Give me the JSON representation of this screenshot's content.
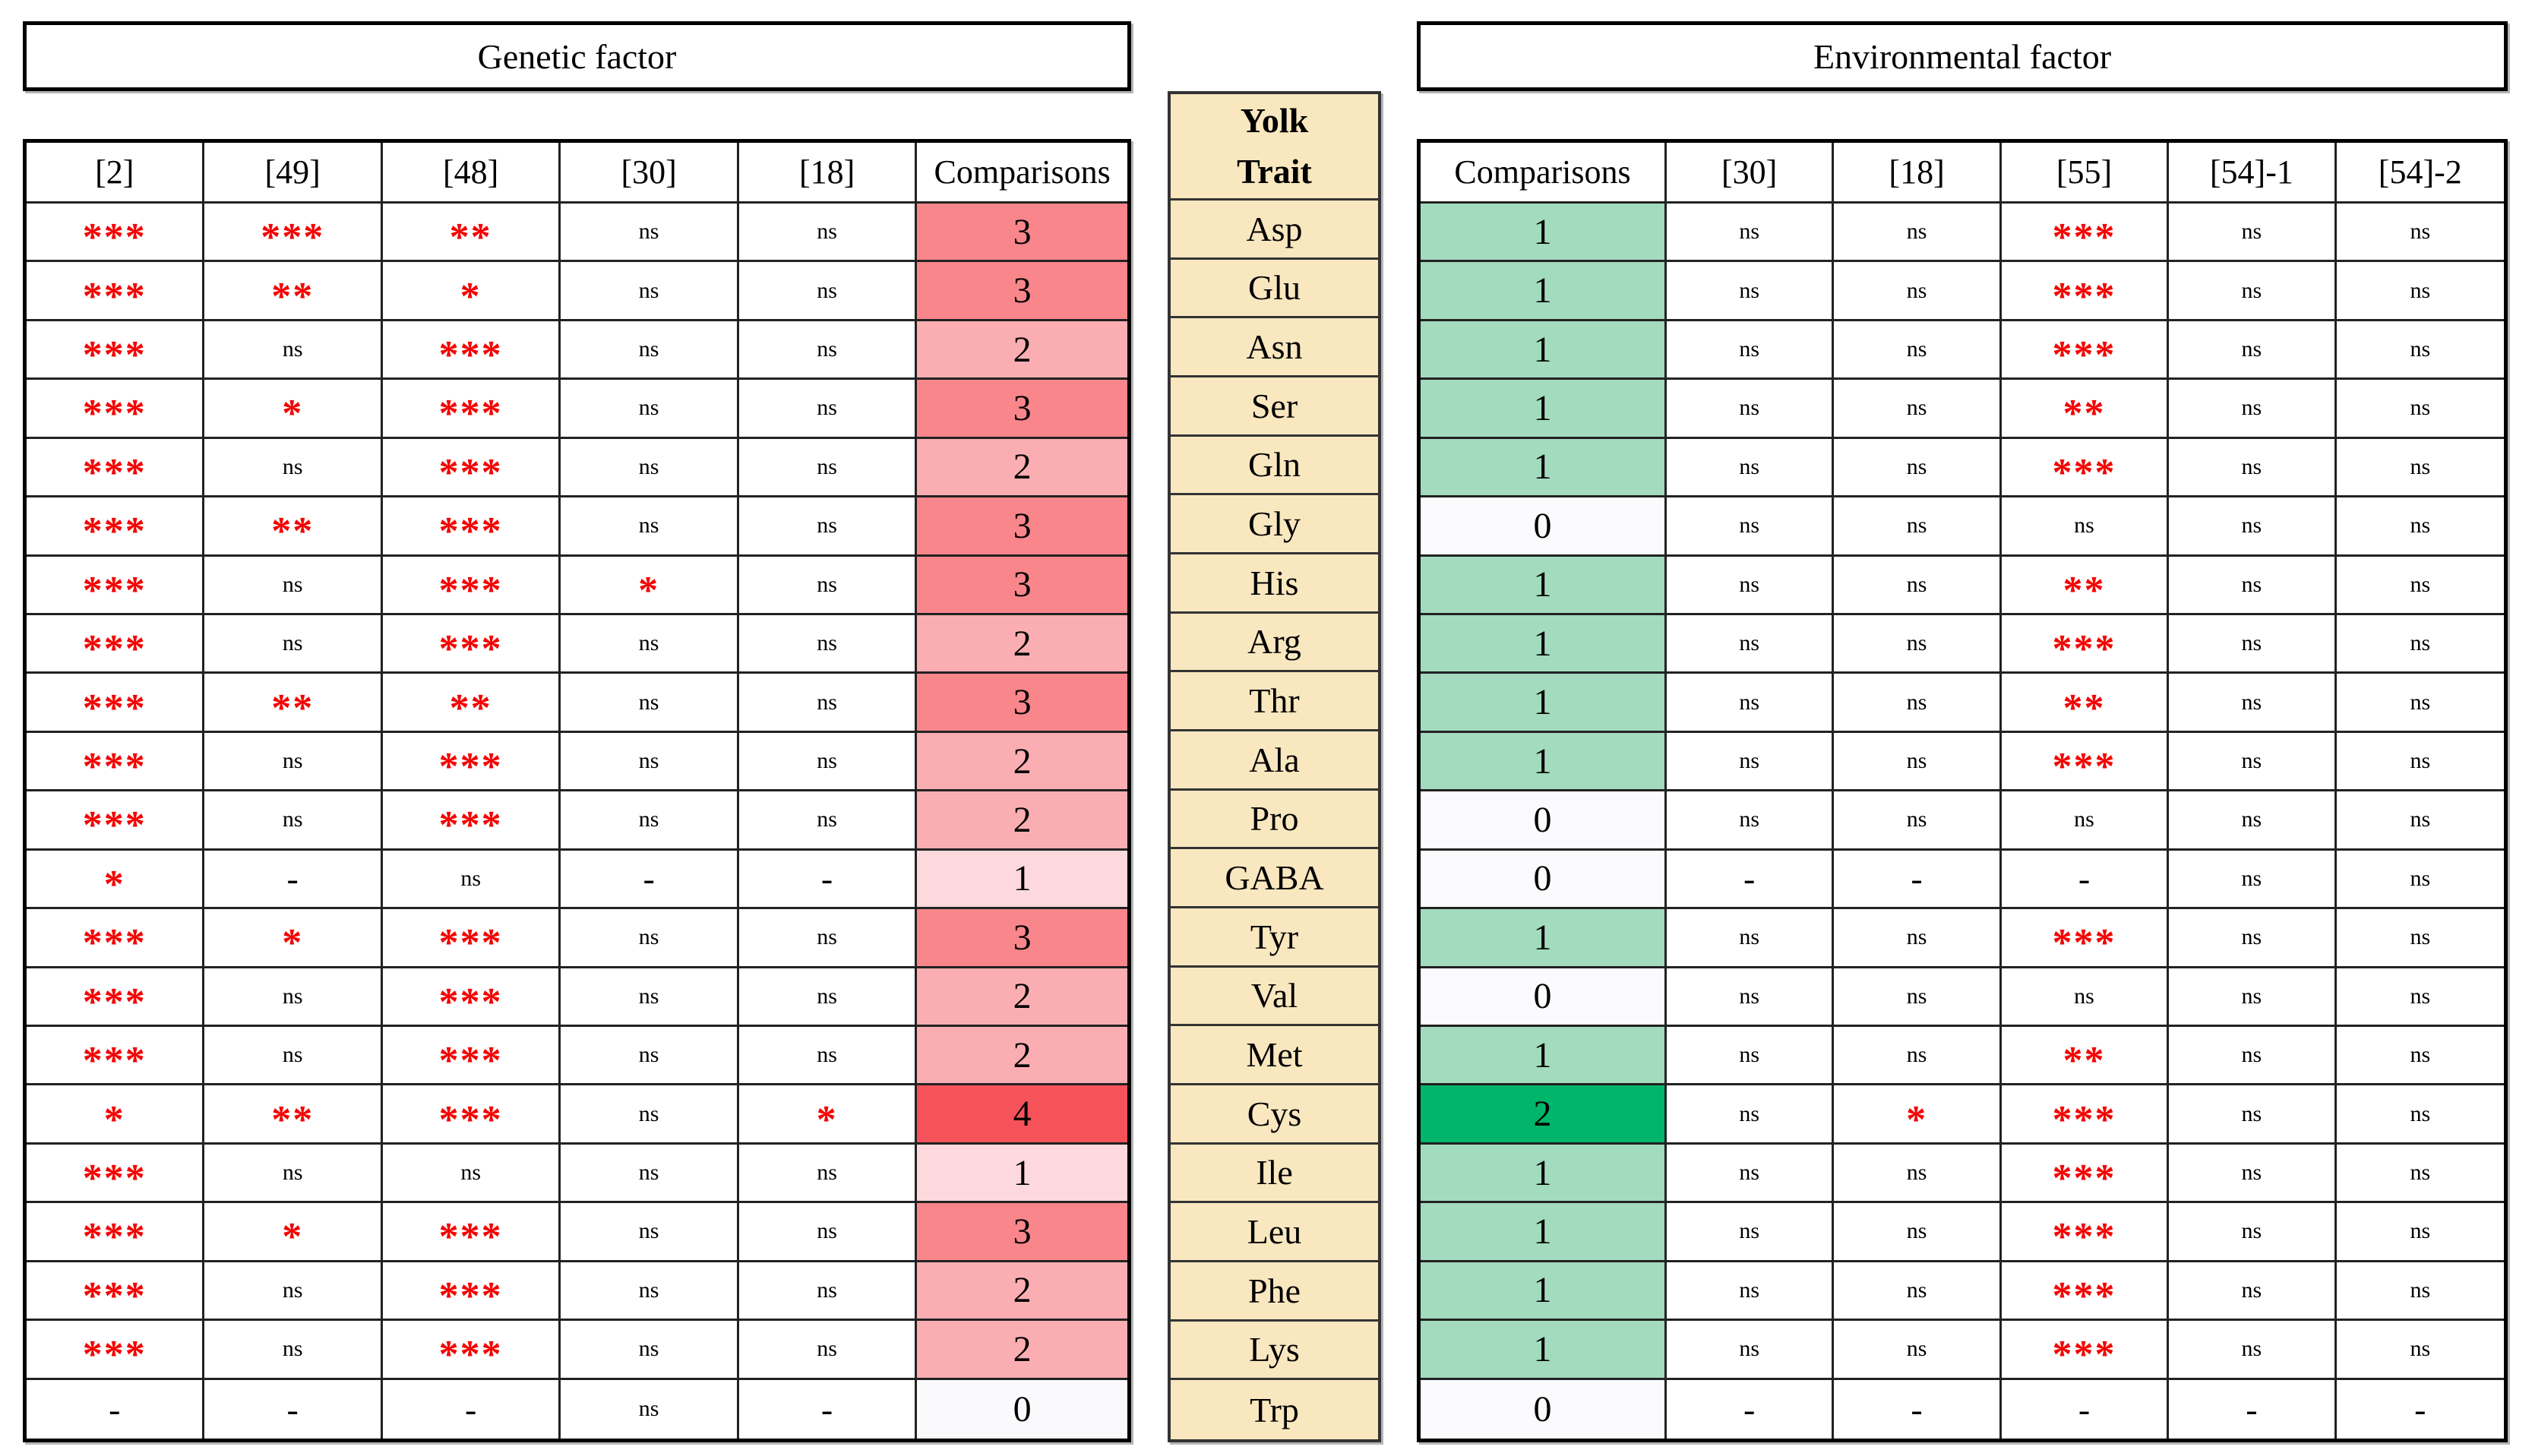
{
  "left_table": {
    "title": "Genetic factor",
    "columns": [
      "[2]",
      "[49]",
      "[48]",
      "[30]",
      "[18]",
      "Comparisons"
    ],
    "rows": [
      {
        "trait": "Asp",
        "cells": [
          "***",
          "***",
          "**",
          "ns",
          "ns"
        ],
        "comparisons": "3"
      },
      {
        "trait": "Glu",
        "cells": [
          "***",
          "**",
          "*",
          "ns",
          "ns"
        ],
        "comparisons": "3"
      },
      {
        "trait": "Asn",
        "cells": [
          "***",
          "ns",
          "***",
          "ns",
          "ns"
        ],
        "comparisons": "2"
      },
      {
        "trait": "Ser",
        "cells": [
          "***",
          "*",
          "***",
          "ns",
          "ns"
        ],
        "comparisons": "3"
      },
      {
        "trait": "Gln",
        "cells": [
          "***",
          "ns",
          "***",
          "ns",
          "ns"
        ],
        "comparisons": "2"
      },
      {
        "trait": "Gly",
        "cells": [
          "***",
          "**",
          "***",
          "ns",
          "ns"
        ],
        "comparisons": "3"
      },
      {
        "trait": "His",
        "cells": [
          "***",
          "ns",
          "***",
          "*",
          "ns"
        ],
        "comparisons": "3"
      },
      {
        "trait": "Arg",
        "cells": [
          "***",
          "ns",
          "***",
          "ns",
          "ns"
        ],
        "comparisons": "2"
      },
      {
        "trait": "Thr",
        "cells": [
          "***",
          "**",
          "**",
          "ns",
          "ns"
        ],
        "comparisons": "3"
      },
      {
        "trait": "Ala",
        "cells": [
          "***",
          "ns",
          "***",
          "ns",
          "ns"
        ],
        "comparisons": "2"
      },
      {
        "trait": "Pro",
        "cells": [
          "***",
          "ns",
          "***",
          "ns",
          "ns"
        ],
        "comparisons": "2"
      },
      {
        "trait": "GABA",
        "cells": [
          "*",
          "-",
          "ns",
          "-",
          "-"
        ],
        "comparisons": "1"
      },
      {
        "trait": "Tyr",
        "cells": [
          "***",
          "*",
          "***",
          "ns",
          "ns"
        ],
        "comparisons": "3"
      },
      {
        "trait": "Val",
        "cells": [
          "***",
          "ns",
          "***",
          "ns",
          "ns"
        ],
        "comparisons": "2"
      },
      {
        "trait": "Met",
        "cells": [
          "***",
          "ns",
          "***",
          "ns",
          "ns"
        ],
        "comparisons": "2"
      },
      {
        "trait": "Cys",
        "cells": [
          "*",
          "**",
          "***",
          "ns",
          "*"
        ],
        "comparisons": "4"
      },
      {
        "trait": "Ile",
        "cells": [
          "***",
          "ns",
          "ns",
          "ns",
          "ns"
        ],
        "comparisons": "1"
      },
      {
        "trait": "Leu",
        "cells": [
          "***",
          "*",
          "***",
          "ns",
          "ns"
        ],
        "comparisons": "3"
      },
      {
        "trait": "Phe",
        "cells": [
          "***",
          "ns",
          "***",
          "ns",
          "ns"
        ],
        "comparisons": "2"
      },
      {
        "trait": "Lys",
        "cells": [
          "***",
          "ns",
          "***",
          "ns",
          "ns"
        ],
        "comparisons": "2"
      },
      {
        "trait": "Trp",
        "cells": [
          "-",
          "-",
          "-",
          "ns",
          "-"
        ],
        "comparisons": "0"
      }
    ]
  },
  "middle": {
    "header_lines": [
      "Yolk",
      "Trait"
    ],
    "traits": [
      "Asp",
      "Glu",
      "Asn",
      "Ser",
      "Gln",
      "Gly",
      "His",
      "Arg",
      "Thr",
      "Ala",
      "Pro",
      "GABA",
      "Tyr",
      "Val",
      "Met",
      "Cys",
      "Ile",
      "Leu",
      "Phe",
      "Lys",
      "Trp"
    ]
  },
  "right_table": {
    "title": "Environmental factor",
    "columns": [
      "Comparisons",
      "[30]",
      "[18]",
      "[55]",
      "[54]-1",
      "[54]-2"
    ],
    "rows": [
      {
        "trait": "Asp",
        "comparisons": "1",
        "cells": [
          "ns",
          "ns",
          "***",
          "ns",
          "ns"
        ]
      },
      {
        "trait": "Glu",
        "comparisons": "1",
        "cells": [
          "ns",
          "ns",
          "***",
          "ns",
          "ns"
        ]
      },
      {
        "trait": "Asn",
        "comparisons": "1",
        "cells": [
          "ns",
          "ns",
          "***",
          "ns",
          "ns"
        ]
      },
      {
        "trait": "Ser",
        "comparisons": "1",
        "cells": [
          "ns",
          "ns",
          "**",
          "ns",
          "ns"
        ]
      },
      {
        "trait": "Gln",
        "comparisons": "1",
        "cells": [
          "ns",
          "ns",
          "***",
          "ns",
          "ns"
        ]
      },
      {
        "trait": "Gly",
        "comparisons": "0",
        "cells": [
          "ns",
          "ns",
          "ns",
          "ns",
          "ns"
        ]
      },
      {
        "trait": "His",
        "comparisons": "1",
        "cells": [
          "ns",
          "ns",
          "**",
          "ns",
          "ns"
        ]
      },
      {
        "trait": "Arg",
        "comparisons": "1",
        "cells": [
          "ns",
          "ns",
          "***",
          "ns",
          "ns"
        ]
      },
      {
        "trait": "Thr",
        "comparisons": "1",
        "cells": [
          "ns",
          "ns",
          "**",
          "ns",
          "ns"
        ]
      },
      {
        "trait": "Ala",
        "comparisons": "1",
        "cells": [
          "ns",
          "ns",
          "***",
          "ns",
          "ns"
        ]
      },
      {
        "trait": "Pro",
        "comparisons": "0",
        "cells": [
          "ns",
          "ns",
          "ns",
          "ns",
          "ns"
        ]
      },
      {
        "trait": "GABA",
        "comparisons": "0",
        "cells": [
          "-",
          "-",
          "-",
          "ns",
          "ns"
        ]
      },
      {
        "trait": "Tyr",
        "comparisons": "1",
        "cells": [
          "ns",
          "ns",
          "***",
          "ns",
          "ns"
        ]
      },
      {
        "trait": "Val",
        "comparisons": "0",
        "cells": [
          "ns",
          "ns",
          "ns",
          "ns",
          "ns"
        ]
      },
      {
        "trait": "Met",
        "comparisons": "1",
        "cells": [
          "ns",
          "ns",
          "**",
          "ns",
          "ns"
        ]
      },
      {
        "trait": "Cys",
        "comparisons": "2",
        "cells": [
          "ns",
          "*",
          "***",
          "ns",
          "ns"
        ]
      },
      {
        "trait": "Ile",
        "comparisons": "1",
        "cells": [
          "ns",
          "ns",
          "***",
          "ns",
          "ns"
        ]
      },
      {
        "trait": "Leu",
        "comparisons": "1",
        "cells": [
          "ns",
          "ns",
          "***",
          "ns",
          "ns"
        ]
      },
      {
        "trait": "Phe",
        "comparisons": "1",
        "cells": [
          "ns",
          "ns",
          "***",
          "ns",
          "ns"
        ]
      },
      {
        "trait": "Lys",
        "comparisons": "1",
        "cells": [
          "ns",
          "ns",
          "***",
          "ns",
          "ns"
        ]
      },
      {
        "trait": "Trp",
        "comparisons": "0",
        "cells": [
          "-",
          "-",
          "-",
          "-",
          "-"
        ]
      }
    ]
  },
  "colors": {
    "star_red": "#F50000",
    "yolk_bg": "#F9E7BF",
    "genetic_levels": {
      "0": "#FAF9FC",
      "1": "#FDD9DD",
      "2": "#FBAEB2",
      "3": "#F9868B",
      "4": "#F5525A"
    },
    "environmental_levels": {
      "0": "#FBFBFD",
      "1": "#A2DBBD",
      "2": "#01B56A"
    },
    "border": "#222222"
  }
}
